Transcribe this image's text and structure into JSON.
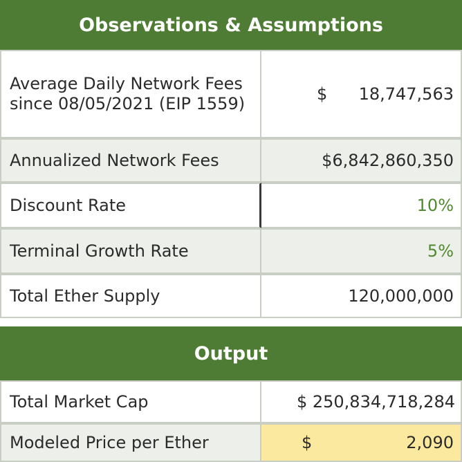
{
  "observations": {
    "title": "Observations & Assumptions",
    "rows": [
      {
        "label": "Average Daily Network Fees since 08/05/2021 (EIP 1559)",
        "currency": "$",
        "value": "18,747,563"
      },
      {
        "label": "Annualized Network Fees",
        "value": "$6,842,860,350"
      },
      {
        "label": "Discount Rate",
        "value": "10%"
      },
      {
        "label": "Terminal Growth Rate",
        "value": "5%"
      },
      {
        "label": "Total Ether Supply",
        "value": "120,000,000"
      }
    ]
  },
  "output": {
    "title": "Output",
    "rows": [
      {
        "label": "Total Market Cap",
        "value": "$ 250,834,718,284"
      },
      {
        "label": "Modeled Price per Ether",
        "currency": "$",
        "value": "2,090"
      }
    ]
  },
  "colors": {
    "header_bg": "#4f7c34",
    "shaded_row": "#edf0ea",
    "green_text": "#4f8a2e",
    "highlight": "#fbe9a0"
  }
}
